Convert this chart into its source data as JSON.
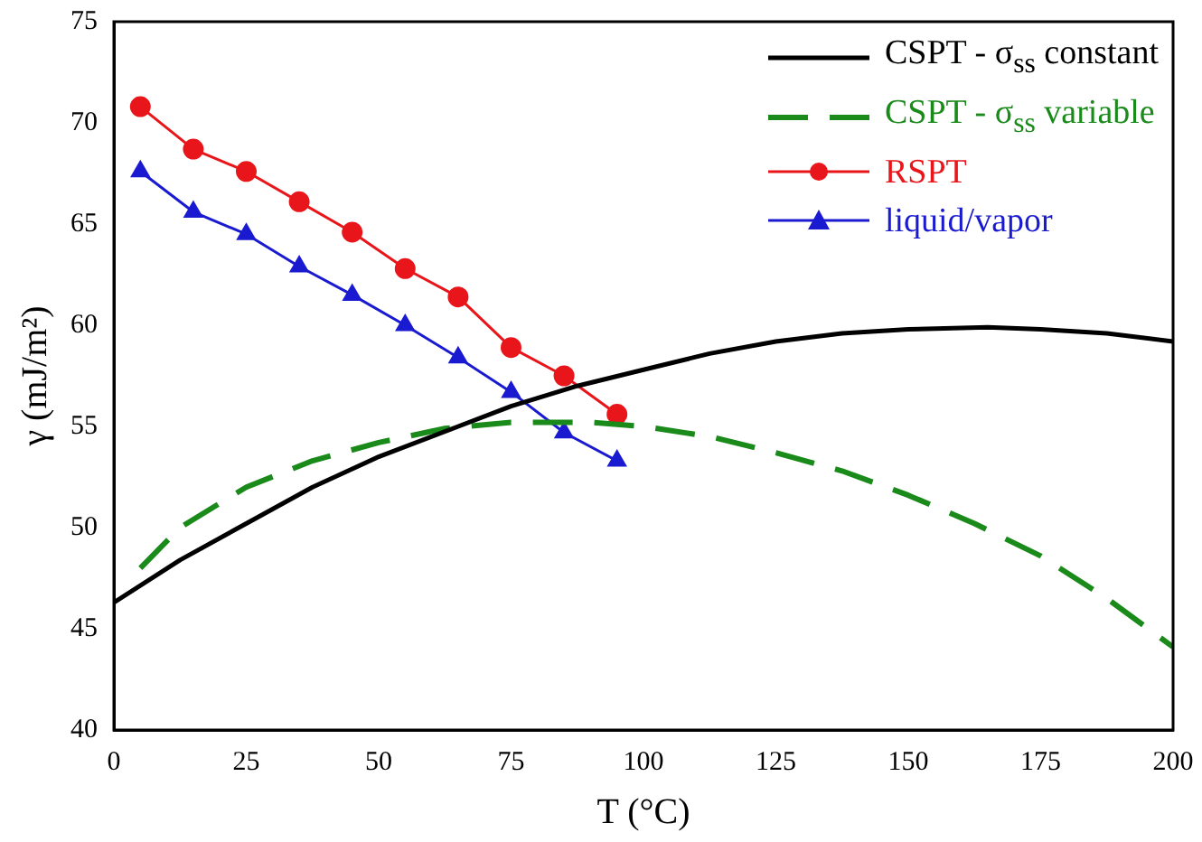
{
  "chart_data": {
    "type": "line",
    "xlabel": "T (°C)",
    "ylabel": "γ (mJ/m²)",
    "xlim": [
      0,
      200
    ],
    "xticks": [
      0,
      25,
      50,
      75,
      100,
      125,
      150,
      175,
      200
    ],
    "ylim": [
      40,
      75
    ],
    "yticks": [
      40,
      45,
      50,
      55,
      60,
      65,
      70,
      75
    ],
    "grid": false,
    "legend": "top right",
    "series": [
      {
        "name": "CSPT - σ$_{ss}$ constant",
        "color": "#000000",
        "marker": "none",
        "line_style": "solid",
        "x": [
          0,
          12.5,
          25,
          37.5,
          50,
          75,
          87.5,
          100,
          112.5,
          125,
          137.5,
          150,
          165,
          175,
          187.5,
          200
        ],
        "values": [
          46.3,
          48.4,
          50.2,
          52.0,
          53.5,
          56.0,
          57.0,
          57.8,
          58.6,
          59.2,
          59.6,
          59.8,
          59.9,
          59.8,
          59.6,
          59.2
        ]
      },
      {
        "name": "CSPT - σ$_{ss}$ variable",
        "color": "#1a8a1a",
        "marker": "none",
        "line_style": "dashed",
        "x": [
          5,
          12.5,
          25,
          37.5,
          50,
          62.5,
          75,
          90,
          100,
          112.5,
          125,
          137.5,
          150,
          162.5,
          175,
          187.5,
          200
        ],
        "values": [
          48.0,
          50.0,
          52.0,
          53.3,
          54.2,
          54.9,
          55.2,
          55.2,
          55.0,
          54.5,
          53.7,
          52.8,
          51.6,
          50.2,
          48.6,
          46.5,
          44.1
        ]
      },
      {
        "name": "RSPT",
        "color": "#e8161b",
        "marker": "circle",
        "line_style": "solid",
        "x": [
          5,
          15,
          25,
          35,
          45,
          55,
          65,
          75,
          85,
          95
        ],
        "values": [
          70.8,
          68.7,
          67.6,
          66.1,
          64.6,
          62.8,
          61.4,
          58.9,
          57.5,
          55.6
        ]
      },
      {
        "name": "liquid/vapor",
        "color": "#1a1ad0",
        "marker": "triangle",
        "line_style": "solid",
        "x": [
          5,
          15,
          25,
          35,
          45,
          55,
          65,
          75,
          85,
          95
        ],
        "values": [
          67.6,
          65.6,
          64.5,
          62.9,
          61.5,
          60.0,
          58.4,
          56.7,
          54.7,
          53.3
        ]
      }
    ]
  }
}
